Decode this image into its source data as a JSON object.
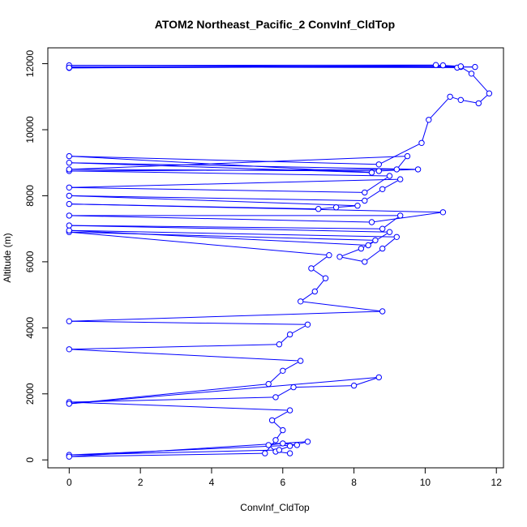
{
  "chart_data": {
    "type": "line",
    "title": "ATOM2 Northeast_Pacific_2 ConvInf_CldTop",
    "xlabel": "ConvInf_CldTop",
    "ylabel": "Altitude (m)",
    "xlim": [
      -0.6,
      12.2
    ],
    "ylim": [
      -240,
      12480
    ],
    "x_ticks": [
      0,
      2,
      4,
      6,
      8,
      10,
      12
    ],
    "y_ticks": [
      0,
      2000,
      4000,
      6000,
      8000,
      10000,
      12000
    ],
    "grid": false,
    "marker": "open-circle",
    "color": "#0000ff",
    "series": [
      {
        "points": [
          [
            6.2,
            200
          ],
          [
            5.8,
            250
          ],
          [
            5.6,
            450
          ],
          [
            6.0,
            500
          ],
          [
            6.4,
            450
          ],
          [
            0,
            150
          ],
          [
            5.9,
            300
          ],
          [
            6.2,
            420
          ],
          [
            6.7,
            550
          ],
          [
            0,
            100
          ],
          [
            5.5,
            200
          ],
          [
            5.8,
            600
          ],
          [
            6.0,
            900
          ],
          [
            5.7,
            1200
          ],
          [
            6.2,
            1500
          ],
          [
            0,
            1750
          ],
          [
            5.8,
            1900
          ],
          [
            6.3,
            2200
          ],
          [
            8.0,
            2250
          ],
          [
            8.7,
            2500
          ],
          [
            0,
            1700
          ],
          [
            5.6,
            2300
          ],
          [
            6.0,
            2700
          ],
          [
            6.5,
            3000
          ],
          [
            0,
            3350
          ],
          [
            5.9,
            3500
          ],
          [
            6.2,
            3800
          ],
          [
            6.7,
            4100
          ],
          [
            0,
            4200
          ],
          [
            8.8,
            4500
          ],
          [
            6.5,
            4800
          ],
          [
            6.9,
            5100
          ],
          [
            7.2,
            5500
          ],
          [
            6.8,
            5800
          ],
          [
            7.3,
            6200
          ],
          [
            0,
            6900
          ],
          [
            8.6,
            6650
          ],
          [
            8.2,
            6400
          ],
          [
            7.6,
            6150
          ],
          [
            8.3,
            6000
          ],
          [
            8.8,
            6400
          ],
          [
            9.2,
            6750
          ],
          [
            0,
            6950
          ],
          [
            8.4,
            6500
          ],
          [
            9.0,
            6900
          ],
          [
            0,
            7100
          ],
          [
            8.8,
            7000
          ],
          [
            9.3,
            7400
          ],
          [
            0,
            7400
          ],
          [
            8.5,
            7200
          ],
          [
            10.5,
            7500
          ],
          [
            0,
            7750
          ],
          [
            7.0,
            7600
          ],
          [
            7.5,
            7650
          ],
          [
            8.1,
            7700
          ],
          [
            0,
            8000
          ],
          [
            8.3,
            7850
          ],
          [
            8.8,
            8200
          ],
          [
            9.3,
            8500
          ],
          [
            0,
            8250
          ],
          [
            8.3,
            8100
          ],
          [
            9.0,
            8600
          ],
          [
            0,
            8750
          ],
          [
            9.2,
            8800
          ],
          [
            9.5,
            9200
          ],
          [
            0,
            8800
          ],
          [
            8.7,
            8750
          ],
          [
            9.8,
            8800
          ],
          [
            0,
            9000
          ],
          [
            8.5,
            8700
          ],
          [
            0,
            9200
          ],
          [
            8.7,
            8950
          ],
          [
            9.9,
            9600
          ],
          [
            10.1,
            10300
          ],
          [
            10.7,
            11000
          ],
          [
            11.0,
            10900
          ],
          [
            11.5,
            10800
          ],
          [
            11.8,
            11100
          ],
          [
            11.3,
            11700
          ],
          [
            11.0,
            11900
          ],
          [
            0,
            11900
          ],
          [
            10.9,
            11880
          ],
          [
            10.5,
            11950
          ],
          [
            0,
            11870
          ],
          [
            11.0,
            11920
          ],
          [
            10.3,
            11960
          ],
          [
            0,
            11950
          ],
          [
            11.4,
            11900
          ],
          [
            0,
            11880
          ]
        ]
      }
    ]
  }
}
